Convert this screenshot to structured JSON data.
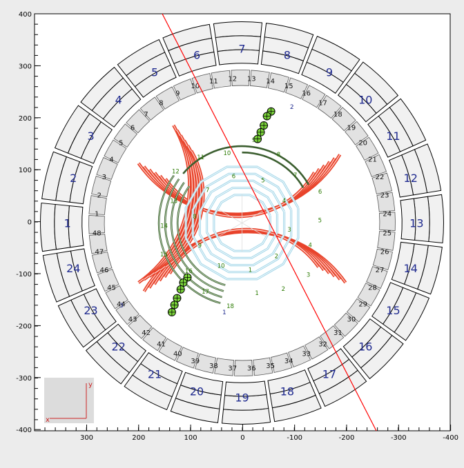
{
  "colors": {
    "background": "#ececec",
    "plot_background": "#ffffff",
    "outer_cell_fill": "#f1f1f1",
    "outer_cell_stroke": "#000000",
    "outer_label": "#1f2a8f",
    "inner_cell_fill": "#e2e2e2",
    "axis": "#000000",
    "track": "#ff0000",
    "red_layer": "#e8432b",
    "green_layer": "#3b5e2f",
    "green_label": "#2a7a00",
    "blue_layer": "#a9d9ea",
    "blue_label": "#3a88b8",
    "hit_fill": "#7ad43a",
    "inset_fill": "#dcdcdc",
    "inset_axis": "#cc2222"
  },
  "x_axis": {
    "ticks": [
      "300",
      "200",
      "100",
      "0",
      "-100",
      "-200",
      "-300",
      "-400"
    ]
  },
  "y_axis": {
    "ticks": [
      "400",
      "300",
      "200",
      "100",
      "0",
      "-100",
      "-200",
      "-300",
      "-400"
    ]
  },
  "outer_ring_labels": [
    "1",
    "2",
    "3",
    "4",
    "5",
    "6",
    "7",
    "8",
    "9",
    "10",
    "11",
    "12",
    "13",
    "14",
    "15",
    "16",
    "17",
    "18",
    "19",
    "20",
    "21",
    "22",
    "23",
    "24"
  ],
  "inner_ring_labels": [
    "1",
    "2",
    "3",
    "4",
    "5",
    "6",
    "7",
    "8",
    "9",
    "10",
    "11",
    "12",
    "13",
    "14",
    "15",
    "16",
    "17",
    "18",
    "19",
    "20",
    "21",
    "22",
    "23",
    "24",
    "25",
    "26",
    "27",
    "28",
    "29",
    "30",
    "31",
    "32",
    "33",
    "34",
    "35",
    "36",
    "37",
    "38",
    "39",
    "40",
    "41",
    "42",
    "43",
    "44",
    "45",
    "46",
    "47",
    "48"
  ],
  "sector_labels": {
    "red_top": "2",
    "red_bottom_right": "1",
    "red_bottom_left": "3"
  },
  "green_labels": [
    "1",
    "2",
    "3",
    "4",
    "5",
    "6",
    "7",
    "8",
    "9",
    "10",
    "11",
    "12",
    "13",
    "14",
    "15",
    "16",
    "17",
    "18"
  ],
  "blue_labels": [
    "1",
    "2",
    "3",
    "4",
    "5",
    "6",
    "7",
    "8",
    "9",
    "10"
  ],
  "inset": {
    "y_label": "y",
    "x_label": "x"
  },
  "hits": {
    "upper": [
      [
        -56,
        215
      ],
      [
        -48,
        206
      ],
      [
        -42,
        188
      ],
      [
        -36,
        175
      ],
      [
        -30,
        162
      ]
    ],
    "lower": [
      [
        105,
        -105
      ],
      [
        113,
        -115
      ],
      [
        118,
        -128
      ],
      [
        125,
        -145
      ],
      [
        130,
        -158
      ],
      [
        135,
        -172
      ]
    ]
  }
}
